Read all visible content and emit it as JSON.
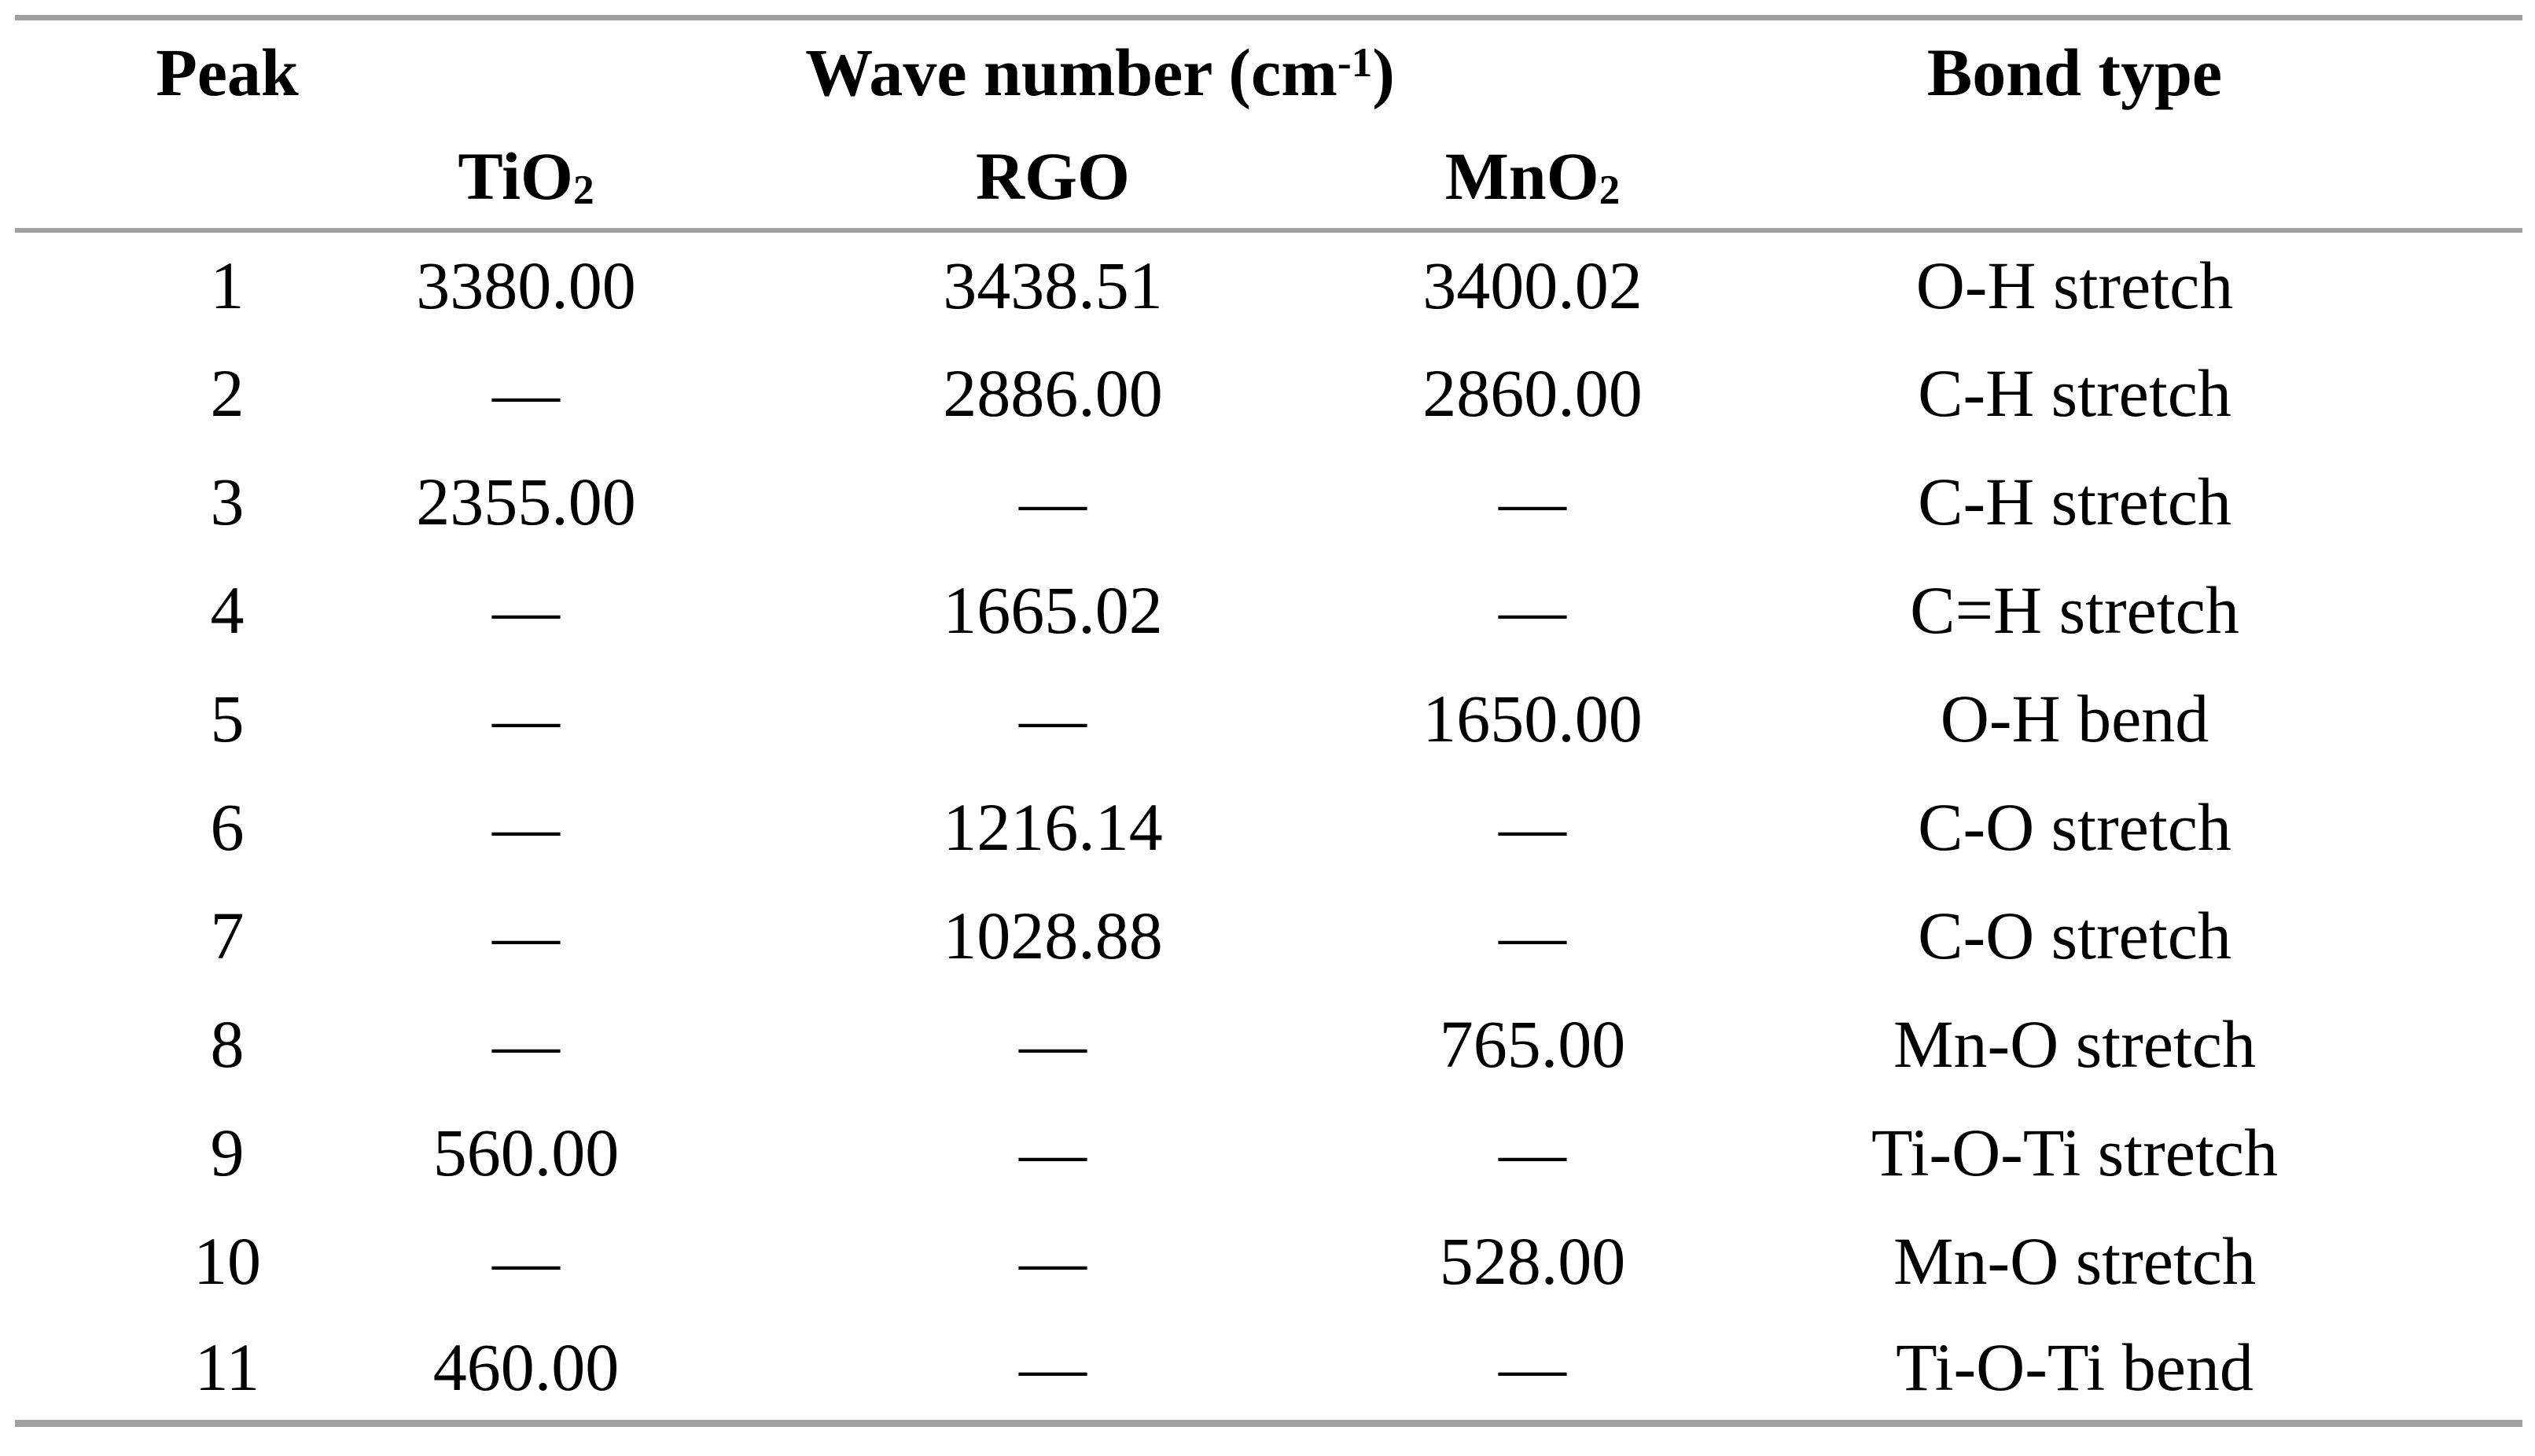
{
  "page": {
    "background_color": "#ffffff",
    "text_color": "#000000",
    "rule_color": "#a0a0a0"
  },
  "table": {
    "header": {
      "peak_label": "Peak",
      "wave_number_prefix": "Wave number (cm",
      "wave_number_superscript": "-1",
      "wave_number_suffix": ")",
      "bond_type_label": "Bond type",
      "tio2_prefix": "TiO",
      "tio2_subscript": "2",
      "rgo_label": "RGO",
      "mno2_prefix": "MnO",
      "mno2_subscript": "2"
    },
    "empty_cell_glyph": "—",
    "rows": [
      {
        "peak": "1",
        "tio2": "3380.00",
        "rgo": "3438.51",
        "mno2": "3400.02",
        "bond": "O-H stretch"
      },
      {
        "peak": "2",
        "tio2": "—",
        "rgo": "2886.00",
        "mno2": "2860.00",
        "bond": "C-H stretch"
      },
      {
        "peak": "3",
        "tio2": "2355.00",
        "rgo": "—",
        "mno2": "—",
        "bond": "C-H stretch"
      },
      {
        "peak": "4",
        "tio2": "—",
        "rgo": "1665.02",
        "mno2": "—",
        "bond": "C=H stretch"
      },
      {
        "peak": "5",
        "tio2": "—",
        "rgo": "—",
        "mno2": "1650.00",
        "bond": "O-H bend"
      },
      {
        "peak": "6",
        "tio2": "—",
        "rgo": "1216.14",
        "mno2": "—",
        "bond": "C-O stretch"
      },
      {
        "peak": "7",
        "tio2": "—",
        "rgo": "1028.88",
        "mno2": "—",
        "bond": "C-O stretch"
      },
      {
        "peak": "8",
        "tio2": "—",
        "rgo": "—",
        "mno2": "765.00",
        "bond": "Mn-O stretch"
      },
      {
        "peak": "9",
        "tio2": "560.00",
        "rgo": "—",
        "mno2": "—",
        "bond": "Ti-O-Ti stretch"
      },
      {
        "peak": "10",
        "tio2": "—",
        "rgo": "—",
        "mno2": "528.00",
        "bond": "Mn-O stretch"
      },
      {
        "peak": "11",
        "tio2": "460.00",
        "rgo": "—",
        "mno2": "—",
        "bond": "Ti-O-Ti bend"
      }
    ]
  }
}
